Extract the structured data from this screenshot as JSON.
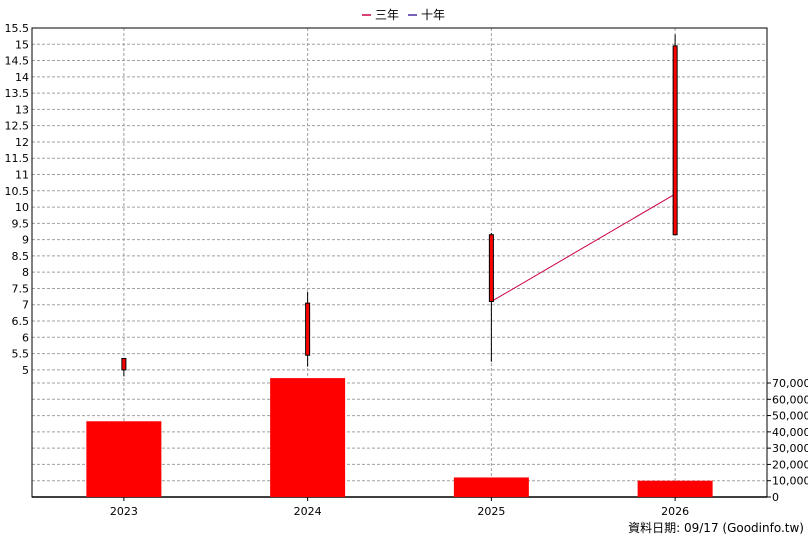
{
  "chart_data": {
    "type": "candlestick+bar",
    "categories": [
      "2023",
      "2024",
      "2025",
      "2026"
    ],
    "legend": [
      {
        "label": "三年",
        "color": "#cc0044"
      },
      {
        "label": "十年",
        "color": "#4b2aa0"
      }
    ],
    "price_axis": {
      "ylim": [
        4.75,
        15.5
      ],
      "ticks": [
        "5",
        "5.5",
        "6",
        "6.5",
        "7",
        "7.5",
        "8",
        "8.5",
        "9",
        "9.5",
        "10",
        "10.5",
        "11",
        "11.5",
        "12",
        "12.5",
        "13",
        "13.5",
        "14",
        "14.5",
        "15",
        "15.5"
      ],
      "grid": true
    },
    "candles": [
      {
        "year": "2023",
        "open": 5.0,
        "high": 5.35,
        "low": 4.8,
        "close": 5.35
      },
      {
        "year": "2024",
        "open": 5.45,
        "high": 7.4,
        "low": 5.1,
        "close": 7.05
      },
      {
        "year": "2025",
        "open": 7.1,
        "high": 9.2,
        "low": 5.25,
        "close": 9.15
      },
      {
        "year": "2026",
        "open": 9.15,
        "high": 15.3,
        "low": 9.15,
        "close": 14.95
      }
    ],
    "three_year_line": [
      {
        "year": "2025",
        "value": 7.1
      },
      {
        "year": "2026",
        "value": 10.4
      }
    ],
    "volume_axis": {
      "ylim": [
        0,
        70000
      ],
      "ticks": [
        "0",
        "10,000",
        "20,000",
        "30,000",
        "40,000",
        "50,000",
        "60,000",
        "70,000"
      ]
    },
    "volumes": [
      46500,
      73000,
      12000,
      10000
    ],
    "colors": {
      "candle": "#ff0000",
      "bar": "#ff0000",
      "grid": "#a0a0a0",
      "axis": "#000000"
    }
  },
  "footer": {
    "source": "資料日期: 09/17  (Goodinfo.tw)"
  }
}
